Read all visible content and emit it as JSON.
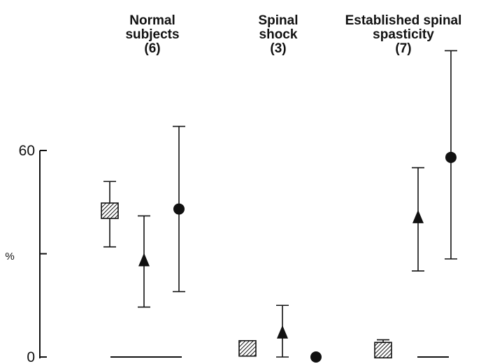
{
  "chart_data": {
    "type": "scatter",
    "description_of_markers": [
      "hatched-square",
      "triangle",
      "circle"
    ],
    "ylabel": "%",
    "ylim": [
      0,
      60
    ],
    "y_ticks": [
      {
        "value": 60,
        "label": "60"
      },
      {
        "value": 30,
        "label": ""
      },
      {
        "value": 0,
        "label": "0"
      }
    ],
    "y_unit_label": "%",
    "groups": [
      {
        "title_lines": [
          "Normal",
          "subjects",
          "(6)"
        ],
        "points": [
          {
            "marker": "hatched-square",
            "mean": 42.5,
            "err_low": 32,
            "err_high": 51
          },
          {
            "marker": "triangle",
            "mean": 28,
            "err_low": 14.5,
            "err_high": 41
          },
          {
            "marker": "circle",
            "mean": 43,
            "err_low": 19,
            "err_high": 67
          }
        ],
        "zero_line": true
      },
      {
        "title_lines": [
          "Spinal",
          "shock",
          "(3)"
        ],
        "points": [
          {
            "marker": "hatched-square",
            "mean": 2.5,
            "err_low": null,
            "err_high": null
          },
          {
            "marker": "triangle",
            "mean": 7,
            "err_low": 0,
            "err_high": 15
          },
          {
            "marker": "circle",
            "mean": 0,
            "err_low": null,
            "err_high": null
          }
        ],
        "zero_line": false
      },
      {
        "title_lines": [
          "Established spinal",
          "spasticity",
          "(7)"
        ],
        "points": [
          {
            "marker": "hatched-square",
            "mean": 2,
            "err_low": 0,
            "err_high": 5
          },
          {
            "marker": "triangle",
            "mean": 40.5,
            "err_low": 25,
            "err_high": 55
          },
          {
            "marker": "circle",
            "mean": 58,
            "err_low": 28.5,
            "err_high": 89
          }
        ],
        "zero_line": true
      }
    ]
  }
}
